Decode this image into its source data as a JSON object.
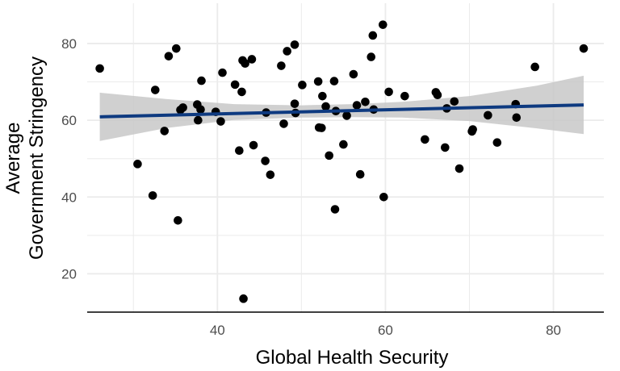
{
  "chart_data": {
    "type": "scatter",
    "xlabel": "Global Health Security",
    "ylabel_lines": [
      "Average",
      "Government Stringency"
    ],
    "xlim": [
      24.5,
      86
    ],
    "ylim": [
      10,
      90.5
    ],
    "xticks": [
      40,
      60,
      80
    ],
    "yticks": [
      20,
      40,
      60,
      80
    ],
    "x_minor_gridlines": [
      30,
      50,
      70
    ],
    "y_minor_gridlines": [
      30,
      50,
      70
    ],
    "grid": true,
    "points": [
      {
        "x": 26.0,
        "y": 73.5
      },
      {
        "x": 30.5,
        "y": 48.6
      },
      {
        "x": 32.3,
        "y": 40.4
      },
      {
        "x": 32.6,
        "y": 67.9
      },
      {
        "x": 33.7,
        "y": 57.2
      },
      {
        "x": 34.2,
        "y": 76.7
      },
      {
        "x": 35.1,
        "y": 78.7
      },
      {
        "x": 35.3,
        "y": 33.9
      },
      {
        "x": 35.6,
        "y": 62.7
      },
      {
        "x": 35.9,
        "y": 63.3
      },
      {
        "x": 37.6,
        "y": 64.1
      },
      {
        "x": 37.7,
        "y": 60.0
      },
      {
        "x": 38.0,
        "y": 62.8
      },
      {
        "x": 38.1,
        "y": 70.3
      },
      {
        "x": 39.8,
        "y": 62.2
      },
      {
        "x": 40.4,
        "y": 59.7
      },
      {
        "x": 40.6,
        "y": 72.4
      },
      {
        "x": 42.1,
        "y": 69.3
      },
      {
        "x": 42.6,
        "y": 52.1
      },
      {
        "x": 42.9,
        "y": 67.4
      },
      {
        "x": 43.0,
        "y": 75.6
      },
      {
        "x": 43.3,
        "y": 74.8
      },
      {
        "x": 43.1,
        "y": 13.5
      },
      {
        "x": 44.1,
        "y": 75.9
      },
      {
        "x": 44.3,
        "y": 53.5
      },
      {
        "x": 45.7,
        "y": 49.4
      },
      {
        "x": 45.8,
        "y": 62.0
      },
      {
        "x": 46.3,
        "y": 45.8
      },
      {
        "x": 47.6,
        "y": 74.2
      },
      {
        "x": 47.9,
        "y": 59.1
      },
      {
        "x": 48.3,
        "y": 78.0
      },
      {
        "x": 49.2,
        "y": 79.7
      },
      {
        "x": 49.2,
        "y": 64.3
      },
      {
        "x": 49.3,
        "y": 61.9
      },
      {
        "x": 50.1,
        "y": 69.2
      },
      {
        "x": 52.0,
        "y": 70.1
      },
      {
        "x": 52.1,
        "y": 58.1
      },
      {
        "x": 52.4,
        "y": 58.0
      },
      {
        "x": 52.5,
        "y": 66.3
      },
      {
        "x": 52.9,
        "y": 63.6
      },
      {
        "x": 53.3,
        "y": 50.8
      },
      {
        "x": 53.9,
        "y": 70.2
      },
      {
        "x": 54.0,
        "y": 36.8
      },
      {
        "x": 54.1,
        "y": 62.4
      },
      {
        "x": 55.0,
        "y": 53.7
      },
      {
        "x": 55.4,
        "y": 61.2
      },
      {
        "x": 56.2,
        "y": 72.0
      },
      {
        "x": 56.6,
        "y": 63.9
      },
      {
        "x": 57.0,
        "y": 45.9
      },
      {
        "x": 57.6,
        "y": 64.8
      },
      {
        "x": 58.3,
        "y": 76.5
      },
      {
        "x": 58.5,
        "y": 82.1
      },
      {
        "x": 58.6,
        "y": 62.8
      },
      {
        "x": 59.7,
        "y": 84.9
      },
      {
        "x": 59.8,
        "y": 40.0
      },
      {
        "x": 60.4,
        "y": 67.4
      },
      {
        "x": 62.3,
        "y": 66.3
      },
      {
        "x": 64.7,
        "y": 55.0
      },
      {
        "x": 66.0,
        "y": 67.3
      },
      {
        "x": 66.2,
        "y": 66.6
      },
      {
        "x": 67.1,
        "y": 52.9
      },
      {
        "x": 67.3,
        "y": 63.1
      },
      {
        "x": 68.2,
        "y": 64.9
      },
      {
        "x": 68.8,
        "y": 47.4
      },
      {
        "x": 70.3,
        "y": 57.1
      },
      {
        "x": 70.4,
        "y": 57.6
      },
      {
        "x": 72.2,
        "y": 61.3
      },
      {
        "x": 73.3,
        "y": 54.2
      },
      {
        "x": 75.5,
        "y": 64.2
      },
      {
        "x": 75.6,
        "y": 60.7
      },
      {
        "x": 77.8,
        "y": 73.9
      },
      {
        "x": 83.6,
        "y": 78.7
      }
    ],
    "fit_line": {
      "x": [
        26.0,
        83.6
      ],
      "y": [
        60.9,
        64.0
      ],
      "color": "#0e3a80"
    },
    "confidence_band": {
      "x": [
        26.0,
        34.0,
        42.0,
        50.0,
        56.0,
        62.0,
        70.0,
        78.0,
        83.6
      ],
      "lower": [
        54.6,
        58.0,
        60.1,
        60.7,
        60.8,
        60.7,
        59.8,
        57.9,
        56.4
      ],
      "upper": [
        67.2,
        65.5,
        64.2,
        63.9,
        64.2,
        64.8,
        66.3,
        69.0,
        71.6
      ],
      "color": "#c8c8c8"
    },
    "point_color": "#000000",
    "grid_color": "#ebebeb"
  }
}
